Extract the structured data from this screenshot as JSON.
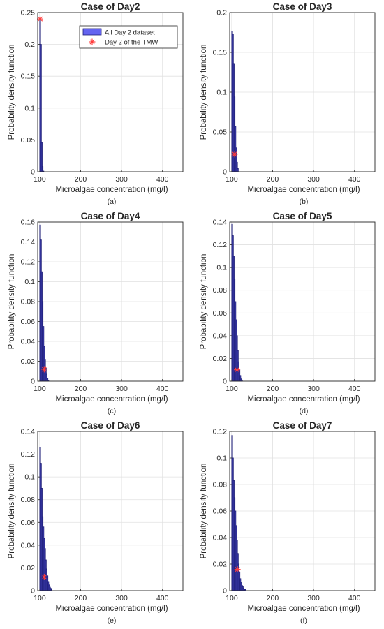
{
  "chart_data": [
    {
      "type": "bar",
      "title": "Case of Day2",
      "caption": "(a)",
      "xlabel": "Microalgae concentration (mg/l)",
      "ylabel": "Probability density function",
      "xlim": [
        95,
        450
      ],
      "ylim": [
        0,
        0.25
      ],
      "xticks": [
        100,
        200,
        300,
        400
      ],
      "yticks": [
        0,
        0.05,
        0.1,
        0.15,
        0.2,
        0.25
      ],
      "ytick_labels": [
        "0",
        "0.05",
        "0.1",
        "0.15",
        "0.2",
        "0.25"
      ],
      "grid": true,
      "bin_start": 100,
      "bin_width": 2,
      "values": [
        0.24,
        0.2,
        0.046,
        0.008,
        0.001
      ],
      "marker": {
        "x": 101,
        "y": 0.24
      },
      "legend": {
        "position": "top-right",
        "entries": [
          {
            "label": "All Day 2 dataset",
            "kind": "bar"
          },
          {
            "label": "Day 2 of the TMW",
            "kind": "marker"
          }
        ]
      }
    },
    {
      "type": "bar",
      "title": "Case of Day3",
      "caption": "(b)",
      "xlabel": "Microalgae concentration (mg/l)",
      "ylabel": "Probability density function",
      "xlim": [
        95,
        450
      ],
      "ylim": [
        0,
        0.2
      ],
      "xticks": [
        100,
        200,
        300,
        400
      ],
      "yticks": [
        0,
        0.05,
        0.1,
        0.15,
        0.2
      ],
      "ytick_labels": [
        "0",
        "0.05",
        "0.1",
        "0.15",
        "0.2"
      ],
      "grid": true,
      "bin_start": 100,
      "bin_width": 2,
      "values": [
        0.176,
        0.173,
        0.136,
        0.094,
        0.057,
        0.03,
        0.012,
        0.004
      ],
      "marker": {
        "x": 107,
        "y": 0.022
      }
    },
    {
      "type": "bar",
      "title": "Case of Day4",
      "caption": "(c)",
      "xlabel": "Microalgae concentration (mg/l)",
      "ylabel": "Probability density function",
      "xlim": [
        95,
        450
      ],
      "ylim": [
        0,
        0.16
      ],
      "xticks": [
        100,
        200,
        300,
        400
      ],
      "yticks": [
        0,
        0.02,
        0.04,
        0.06,
        0.08,
        0.1,
        0.12,
        0.14,
        0.16
      ],
      "ytick_labels": [
        "0",
        "0.02",
        "0.04",
        "0.06",
        "0.08",
        "0.1",
        "0.12",
        "0.14",
        "0.16"
      ],
      "grid": true,
      "bin_start": 100,
      "bin_width": 2,
      "values": [
        0.157,
        0.142,
        0.11,
        0.08,
        0.055,
        0.035,
        0.022,
        0.013,
        0.007,
        0.003,
        0.001
      ],
      "marker": {
        "x": 111,
        "y": 0.012
      }
    },
    {
      "type": "bar",
      "title": "Case of Day5",
      "caption": "(d)",
      "xlabel": "Microalgae concentration (mg/l)",
      "ylabel": "Probability density function",
      "xlim": [
        95,
        450
      ],
      "ylim": [
        0,
        0.14
      ],
      "xticks": [
        100,
        200,
        300,
        400
      ],
      "yticks": [
        0,
        0.02,
        0.04,
        0.06,
        0.08,
        0.1,
        0.12,
        0.14
      ],
      "ytick_labels": [
        "0",
        "0.02",
        "0.04",
        "0.06",
        "0.08",
        "0.1",
        "0.12",
        "0.14"
      ],
      "grid": true,
      "bin_start": 100,
      "bin_width": 2,
      "values": [
        0.138,
        0.128,
        0.11,
        0.09,
        0.07,
        0.054,
        0.04,
        0.027,
        0.017,
        0.01,
        0.005,
        0.002,
        0.001
      ],
      "marker": {
        "x": 113,
        "y": 0.01
      }
    },
    {
      "type": "bar",
      "title": "Case of Day6",
      "caption": "(e)",
      "xlabel": "Microalgae concentration (mg/l)",
      "ylabel": "Probability density function",
      "xlim": [
        95,
        450
      ],
      "ylim": [
        0,
        0.14
      ],
      "xticks": [
        100,
        200,
        300,
        400
      ],
      "yticks": [
        0,
        0.02,
        0.04,
        0.06,
        0.08,
        0.1,
        0.12,
        0.14
      ],
      "ytick_labels": [
        "0",
        "0.02",
        "0.04",
        "0.06",
        "0.08",
        "0.1",
        "0.12",
        "0.14"
      ],
      "grid": true,
      "bin_start": 100,
      "bin_width": 2,
      "values": [
        0.126,
        0.112,
        0.09,
        0.065,
        0.056,
        0.046,
        0.037,
        0.027,
        0.019,
        0.013,
        0.008,
        0.005,
        0.003,
        0.002,
        0.001
      ],
      "marker": {
        "x": 111,
        "y": 0.012
      }
    },
    {
      "type": "bar",
      "title": "Case of Day7",
      "caption": "(f)",
      "xlabel": "Microalgae concentration (mg/l)",
      "ylabel": "Probability density function",
      "xlim": [
        95,
        450
      ],
      "ylim": [
        0,
        0.12
      ],
      "xticks": [
        100,
        200,
        300,
        400
      ],
      "yticks": [
        0,
        0.02,
        0.04,
        0.06,
        0.08,
        0.1,
        0.12
      ],
      "ytick_labels": [
        "0",
        "0.02",
        "0.04",
        "0.06",
        "0.08",
        "0.1",
        "0.12"
      ],
      "grid": true,
      "bin_start": 100,
      "bin_width": 2,
      "values": [
        0.117,
        0.1,
        0.083,
        0.07,
        0.06,
        0.049,
        0.038,
        0.028,
        0.02,
        0.014,
        0.009,
        0.006,
        0.004,
        0.003,
        0.002,
        0.001,
        0.001
      ],
      "marker": {
        "x": 114,
        "y": 0.016
      }
    }
  ],
  "colors": {
    "bar_fill": "#6464f0",
    "bar_edge": "#1e1e78",
    "marker": "#ff3c3c",
    "grid": "#e1e1e1",
    "axis": "#262626"
  },
  "legend_icon": {
    "marker_symbol": "✳"
  }
}
